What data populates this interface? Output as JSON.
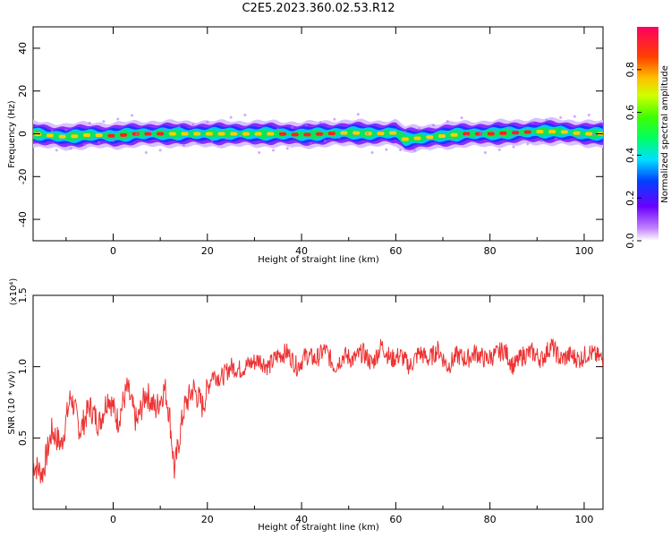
{
  "title": "C2E5.2023.360.02.53.R12",
  "chart_data": [
    {
      "type": "heatmap",
      "xlabel": "Height of straight line (km)",
      "ylabel": "Frequency (Hz)",
      "xlim": [
        -17,
        104
      ],
      "ylim": [
        -50,
        50
      ],
      "xticks": [
        "0",
        "20",
        "40",
        "60",
        "80",
        "100"
      ],
      "xtick_values": [
        0,
        20,
        40,
        60,
        80,
        100
      ],
      "yticks": [
        "40",
        "20",
        "0",
        "-20",
        "-40"
      ],
      "ytick_values": [
        40,
        20,
        0,
        -20,
        -40
      ],
      "grid": false,
      "colorbar": {
        "label": "Normalized spectral amplitude",
        "range": [
          0.0,
          1.0
        ],
        "ticks": [
          "0.0",
          "0.2",
          "0.4",
          "0.6",
          "0.8"
        ],
        "tick_values": [
          0.0,
          0.2,
          0.4,
          0.6,
          0.8
        ],
        "colormap": "rainbow"
      },
      "band": {
        "x_samples": [
          -17,
          -10,
          -5,
          0,
          5,
          10,
          15,
          20,
          25,
          30,
          35,
          40,
          45,
          50,
          55,
          60,
          62,
          65,
          70,
          75,
          80,
          85,
          90,
          95,
          100,
          104
        ],
        "center_hz": [
          0.0,
          -1.5,
          -0.5,
          -1.0,
          0.0,
          0.0,
          0.0,
          0.0,
          0.0,
          0.0,
          0.0,
          -0.5,
          0.0,
          0.5,
          0.0,
          0.5,
          -2.5,
          -2.0,
          -1.0,
          0.0,
          0.0,
          0.5,
          1.0,
          1.0,
          0.0,
          0.0
        ],
        "halfwidth_hz": 6
      }
    },
    {
      "type": "line",
      "xlabel": "Height of straight line (km)",
      "ylabel": "SNR (10 * v/v)",
      "y_multiplier": "(x10⁴)",
      "xlim": [
        -17,
        104
      ],
      "ylim": [
        0.0,
        1.5
      ],
      "xticks": [
        "0",
        "20",
        "40",
        "60",
        "80",
        "100"
      ],
      "xtick_values": [
        0,
        20,
        40,
        60,
        80,
        100
      ],
      "yticks": [
        "1.5",
        "1.0",
        "0.5"
      ],
      "ytick_values": [
        1.5,
        1.0,
        0.5
      ],
      "grid": false,
      "series": [
        {
          "color": "#ee3333",
          "x": [
            -17,
            -15,
            -13,
            -11,
            -9,
            -7,
            -5,
            -3,
            -1,
            1,
            3,
            5,
            7,
            9,
            11,
            12,
            13,
            15,
            17,
            19,
            21,
            23,
            25,
            27,
            29,
            31,
            33,
            35,
            37,
            39,
            41,
            43,
            45,
            47,
            49,
            51,
            53,
            55,
            57,
            59,
            61,
            63,
            65,
            67,
            69,
            71,
            73,
            75,
            77,
            79,
            81,
            83,
            85,
            87,
            89,
            91,
            93,
            95,
            97,
            99,
            101,
            104
          ],
          "y": [
            0.32,
            0.25,
            0.55,
            0.45,
            0.8,
            0.55,
            0.72,
            0.6,
            0.8,
            0.62,
            0.85,
            0.6,
            0.82,
            0.7,
            0.85,
            0.65,
            0.27,
            0.7,
            0.85,
            0.72,
            0.95,
            0.92,
            1.0,
            0.98,
            1.02,
            1.05,
            1.0,
            1.08,
            1.1,
            1.0,
            1.08,
            1.05,
            1.12,
            1.0,
            1.08,
            1.05,
            1.1,
            1.02,
            1.15,
            1.05,
            1.08,
            1.0,
            1.1,
            1.05,
            1.12,
            1.0,
            1.08,
            1.05,
            1.1,
            1.05,
            1.08,
            1.12,
            1.0,
            1.08,
            1.1,
            1.05,
            1.15,
            1.05,
            1.08,
            1.05,
            1.1,
            1.05
          ]
        }
      ]
    }
  ]
}
